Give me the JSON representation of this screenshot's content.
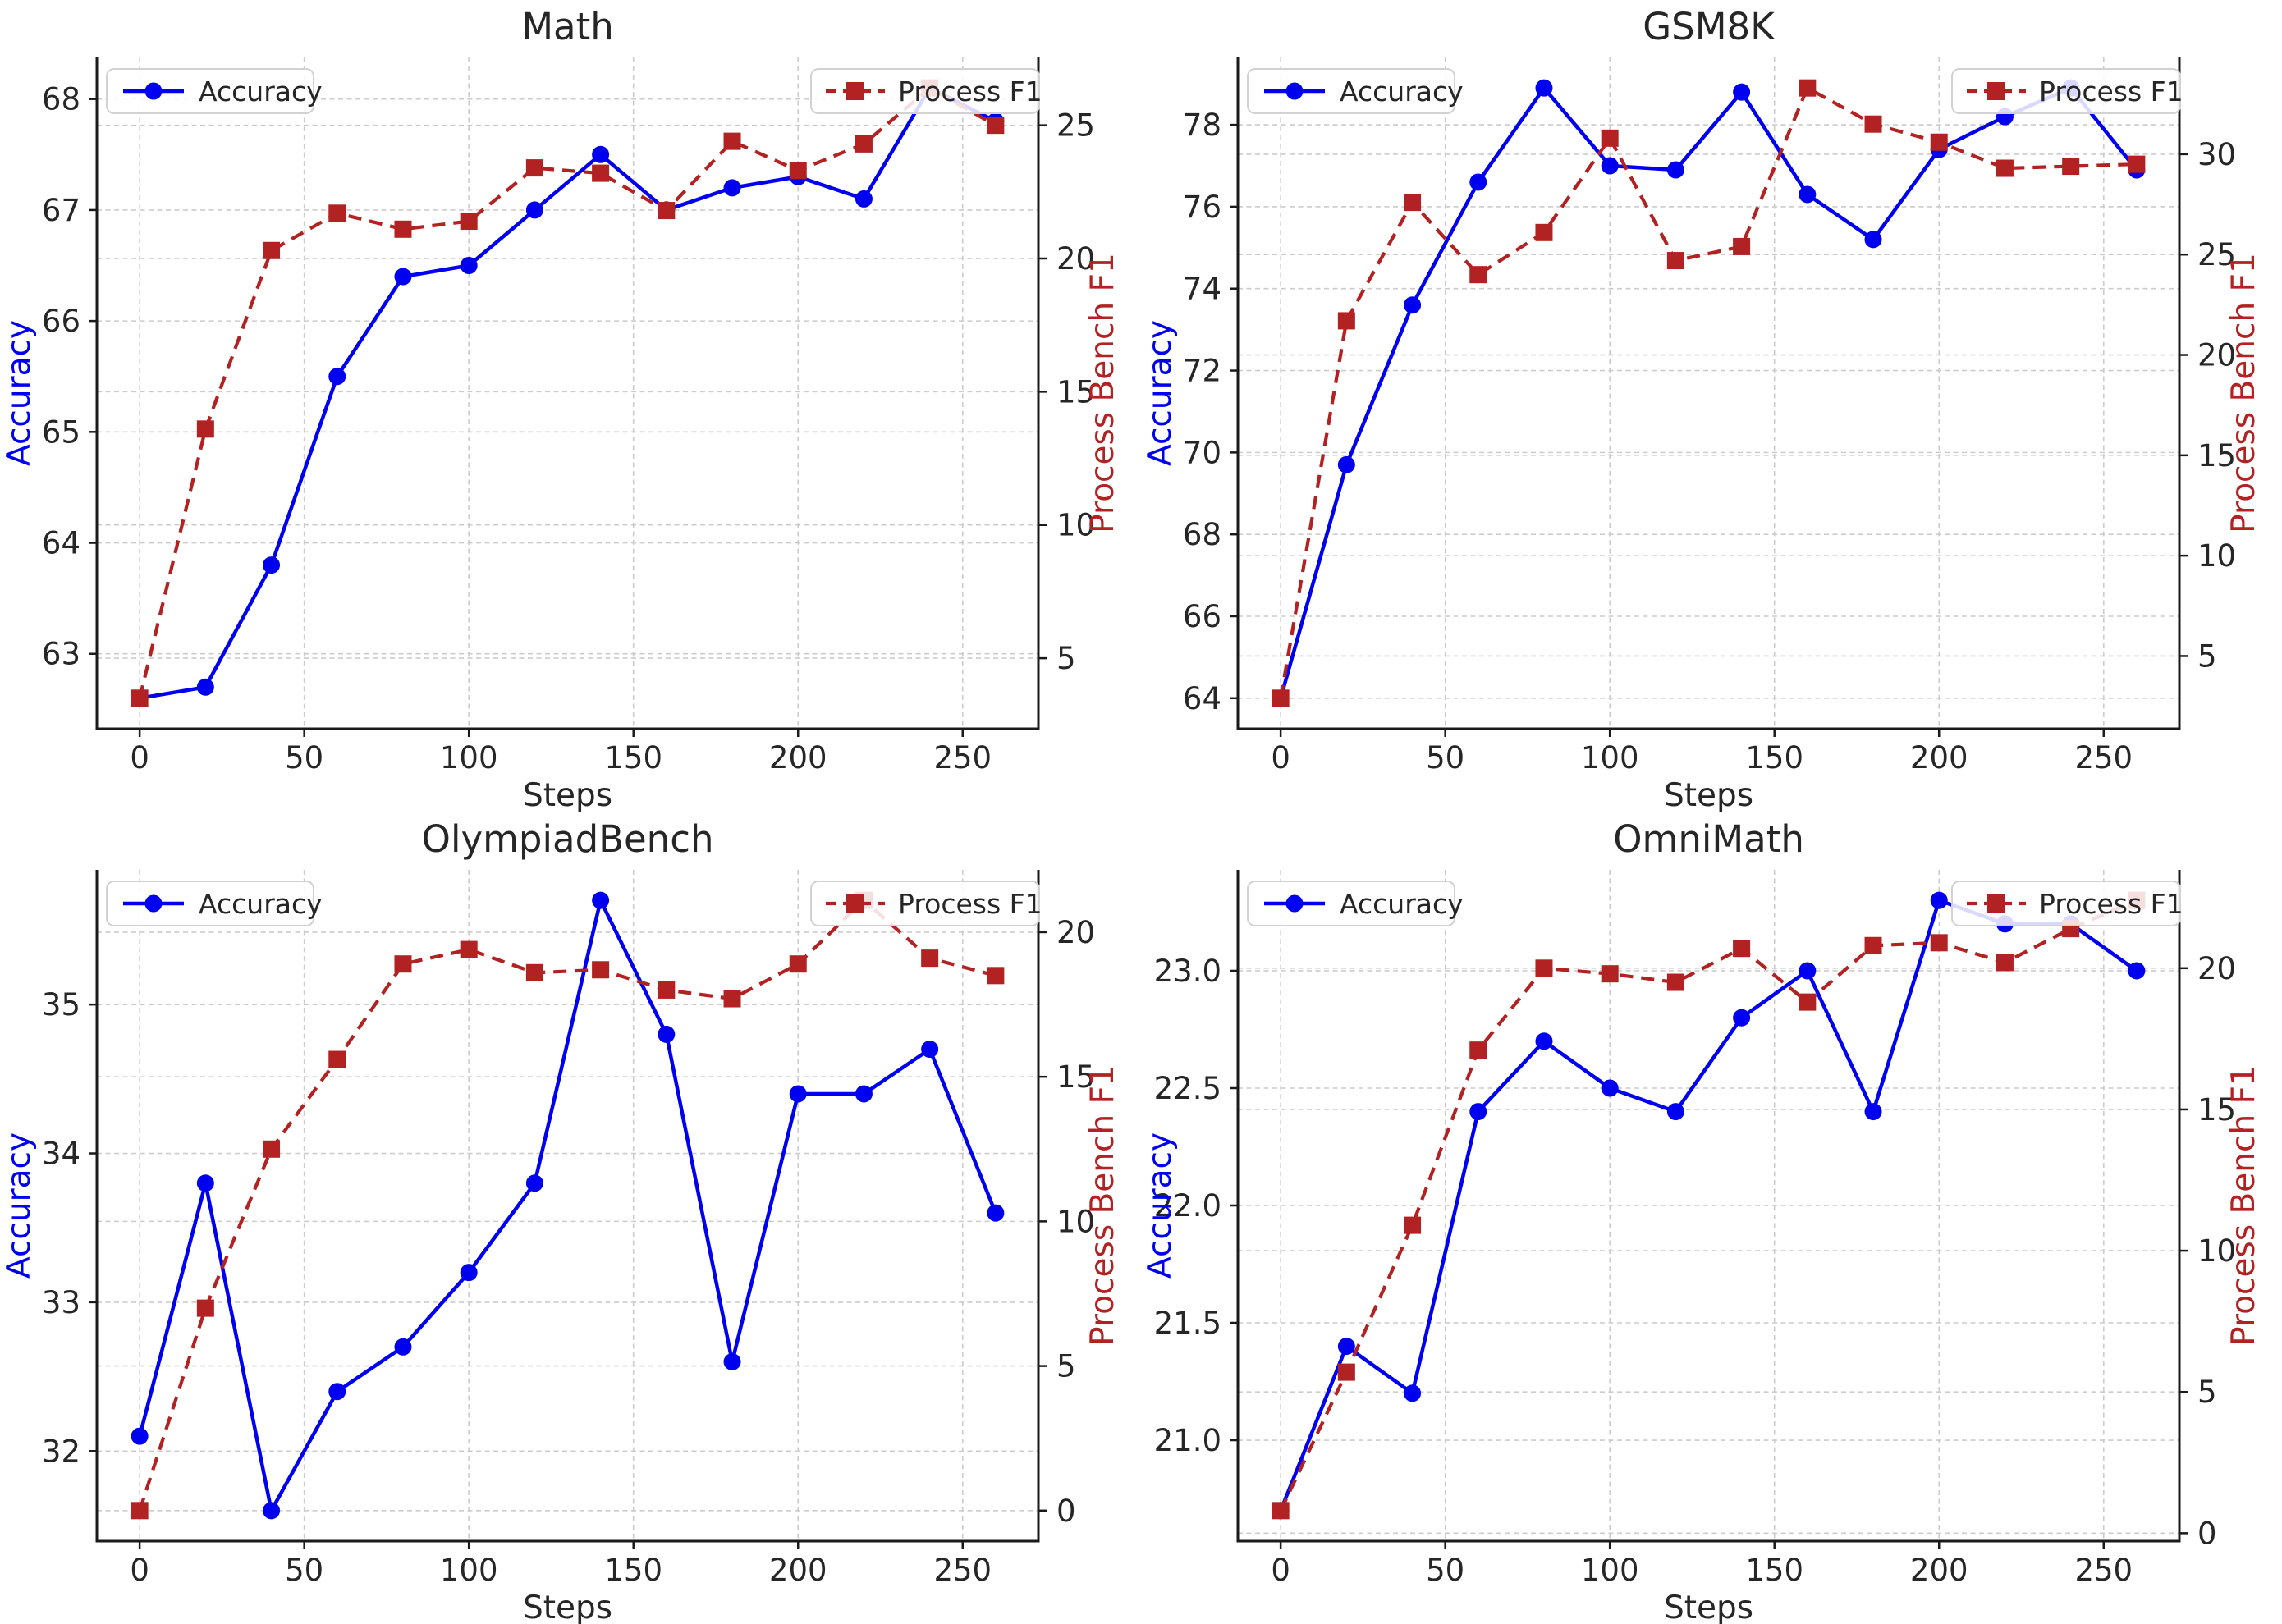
{
  "figure": {
    "background": "#ffffff",
    "x_axis_label": "Steps",
    "left_axis_label": "Accuracy",
    "right_axis_label": "Process Bench F1",
    "legend": {
      "accuracy_label": "Accuracy",
      "process_f1_label": "Process F1"
    },
    "colors": {
      "accuracy_line": "#0000f0",
      "process_f1_line": "#b22222",
      "left_label_color": "#0000f0",
      "right_label_color": "#b22222",
      "grid": "#cccccc",
      "spine": "#1a1a1a",
      "text": "#262626",
      "legend_border": "#d2d2d2",
      "legend_fill_alpha": 0.85
    }
  },
  "chart_data": [
    {
      "id": "math",
      "type": "line",
      "title": "Math",
      "xlabel": "Steps",
      "ylabel_left": "Accuracy",
      "ylabel_right": "Process Bench F1",
      "x": [
        0,
        20,
        40,
        60,
        80,
        100,
        120,
        140,
        160,
        180,
        200,
        220,
        240,
        260
      ],
      "series": [
        {
          "name": "Accuracy",
          "axis": "left",
          "marker": "circle",
          "style": "solid",
          "values": [
            62.6,
            62.7,
            63.8,
            65.5,
            66.4,
            66.5,
            67.0,
            67.5,
            67.0,
            67.2,
            67.3,
            67.1,
            68.1,
            67.8
          ]
        },
        {
          "name": "Process F1",
          "axis": "right",
          "marker": "square",
          "style": "dashed",
          "values": [
            3.5,
            13.6,
            20.3,
            21.7,
            21.1,
            21.4,
            23.4,
            23.2,
            21.8,
            24.4,
            23.3,
            24.3,
            26.4,
            25.0
          ]
        }
      ],
      "xlim": [
        -13,
        273
      ],
      "ylim_left": [
        62.325,
        68.375
      ],
      "ylim_right": [
        2.355,
        27.545
      ],
      "x_ticks": [
        "0",
        "50",
        "100",
        "150",
        "200",
        "250"
      ],
      "left_ticks": [
        "63",
        "64",
        "65",
        "66",
        "67",
        "68"
      ],
      "right_ticks": [
        "5",
        "10",
        "15",
        "20",
        "25"
      ],
      "grid": true,
      "legend_positions": [
        "upper-left",
        "upper-right"
      ]
    },
    {
      "id": "gsm8k",
      "type": "line",
      "title": "GSM8K",
      "xlabel": "Steps",
      "ylabel_left": "Accuracy",
      "ylabel_right": "Process Bench F1",
      "x": [
        0,
        20,
        40,
        60,
        80,
        100,
        120,
        140,
        160,
        180,
        200,
        220,
        240,
        260
      ],
      "series": [
        {
          "name": "Accuracy",
          "axis": "left",
          "marker": "circle",
          "style": "solid",
          "values": [
            64.0,
            69.7,
            73.6,
            76.6,
            78.9,
            77.0,
            76.9,
            78.8,
            76.3,
            75.2,
            77.4,
            78.2,
            78.9,
            76.9
          ]
        },
        {
          "name": "Process F1",
          "axis": "right",
          "marker": "square",
          "style": "dashed",
          "values": [
            2.9,
            21.7,
            27.6,
            24.0,
            26.1,
            30.8,
            24.7,
            25.4,
            33.3,
            31.5,
            30.6,
            29.3,
            29.4,
            29.5
          ]
        }
      ],
      "xlim": [
        -13,
        273
      ],
      "ylim_left": [
        63.255,
        79.645
      ],
      "ylim_right": [
        1.38,
        34.82
      ],
      "x_ticks": [
        "0",
        "50",
        "100",
        "150",
        "200",
        "250"
      ],
      "left_ticks": [
        "64",
        "66",
        "68",
        "70",
        "72",
        "74",
        "76",
        "78"
      ],
      "right_ticks": [
        "5",
        "10",
        "15",
        "20",
        "25",
        "30"
      ],
      "grid": true,
      "legend_positions": [
        "upper-left",
        "upper-right"
      ]
    },
    {
      "id": "olympiadbench",
      "type": "line",
      "title": "OlympiadBench",
      "xlabel": "Steps",
      "ylabel_left": "Accuracy",
      "ylabel_right": "Process Bench F1",
      "x": [
        0,
        20,
        40,
        60,
        80,
        100,
        120,
        140,
        160,
        180,
        200,
        220,
        240,
        260
      ],
      "series": [
        {
          "name": "Accuracy",
          "axis": "left",
          "marker": "circle",
          "style": "solid",
          "values": [
            32.1,
            33.8,
            31.6,
            32.4,
            32.7,
            33.2,
            33.8,
            35.7,
            34.8,
            32.6,
            34.4,
            34.4,
            34.7,
            33.6
          ]
        },
        {
          "name": "Process F1",
          "axis": "right",
          "marker": "square",
          "style": "dashed",
          "values": [
            0.0,
            7.0,
            12.5,
            15.6,
            18.9,
            19.4,
            18.6,
            18.7,
            18.0,
            17.7,
            18.9,
            21.1,
            19.1,
            18.5
          ]
        }
      ],
      "xlim": [
        -13,
        273
      ],
      "ylim_left": [
        31.395,
        35.905
      ],
      "ylim_right": [
        -1.055,
        22.155
      ],
      "x_ticks": [
        "0",
        "50",
        "100",
        "150",
        "200",
        "250"
      ],
      "left_ticks": [
        "32",
        "33",
        "34",
        "35"
      ],
      "right_ticks": [
        "0",
        "5",
        "10",
        "15",
        "20"
      ],
      "grid": true,
      "legend_positions": [
        "upper-left",
        "upper-right"
      ]
    },
    {
      "id": "omnimath",
      "type": "line",
      "title": "OmniMath",
      "xlabel": "Steps",
      "ylabel_left": "Accuracy",
      "ylabel_right": "Process Bench F1",
      "x": [
        0,
        20,
        40,
        60,
        80,
        100,
        120,
        140,
        160,
        180,
        200,
        220,
        240,
        260
      ],
      "series": [
        {
          "name": "Accuracy",
          "axis": "left",
          "marker": "circle",
          "style": "solid",
          "values": [
            20.7,
            21.4,
            21.2,
            22.4,
            22.7,
            22.5,
            22.4,
            22.8,
            23.0,
            22.4,
            23.3,
            23.2,
            23.2,
            23.0
          ]
        },
        {
          "name": "Process F1",
          "axis": "right",
          "marker": "square",
          "style": "dashed",
          "values": [
            0.8,
            5.7,
            10.9,
            17.1,
            20.0,
            19.8,
            19.5,
            20.7,
            18.8,
            20.8,
            20.9,
            20.2,
            21.4,
            22.4
          ]
        }
      ],
      "xlim": [
        -13,
        273
      ],
      "ylim_left": [
        20.57,
        23.43
      ],
      "ylim_right": [
        -0.28,
        23.48
      ],
      "x_ticks": [
        "0",
        "50",
        "100",
        "150",
        "200",
        "250"
      ],
      "left_ticks": [
        "21.0",
        "21.5",
        "22.0",
        "22.5",
        "23.0"
      ],
      "right_ticks": [
        "0",
        "5",
        "10",
        "15",
        "20"
      ],
      "grid": true,
      "legend_positions": [
        "upper-left",
        "upper-right"
      ]
    }
  ]
}
